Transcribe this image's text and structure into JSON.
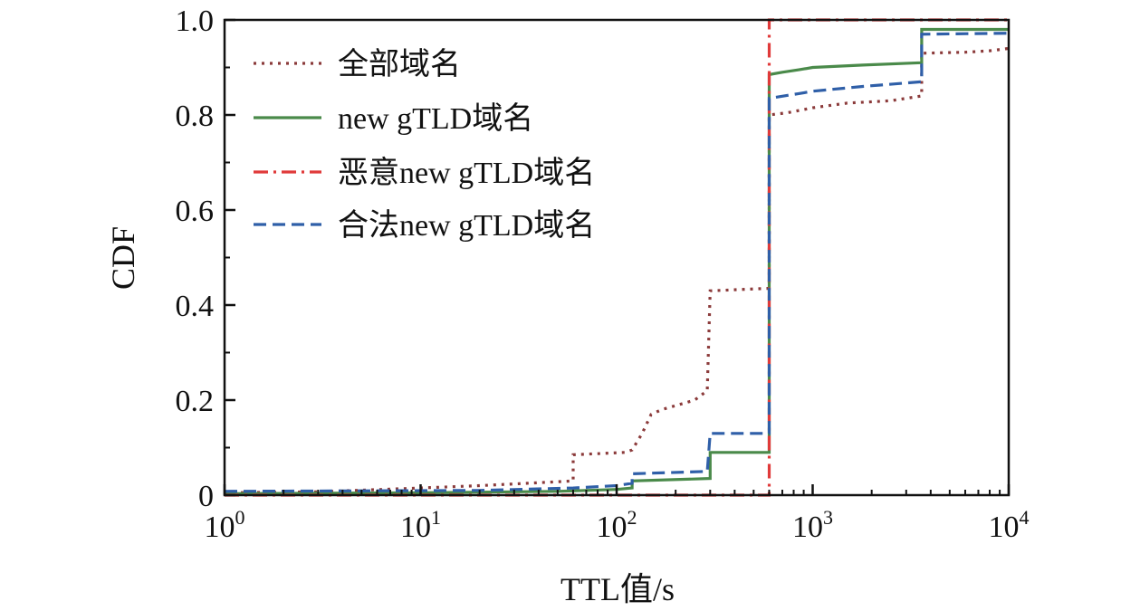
{
  "chart_data": {
    "type": "line",
    "xscale": "log",
    "xlim": [
      1,
      10000
    ],
    "ylim": [
      0,
      1.0
    ],
    "xlabel": "TTL值/s",
    "ylabel": "CDF",
    "xticks": [
      {
        "value": 1,
        "base": "10",
        "exp": "0"
      },
      {
        "value": 10,
        "base": "10",
        "exp": "1"
      },
      {
        "value": 100,
        "base": "10",
        "exp": "2"
      },
      {
        "value": 1000,
        "base": "10",
        "exp": "3"
      },
      {
        "value": 10000,
        "base": "10",
        "exp": "4"
      }
    ],
    "yticks": [
      {
        "value": 0,
        "label": "0"
      },
      {
        "value": 0.2,
        "label": "0.2"
      },
      {
        "value": 0.4,
        "label": "0.4"
      },
      {
        "value": 0.6,
        "label": "0.6"
      },
      {
        "value": 0.8,
        "label": "0.8"
      },
      {
        "value": 1.0,
        "label": "1.0"
      }
    ],
    "legend_position": "top-left",
    "series": [
      {
        "name": "全部域名",
        "color": "#8b3a3a",
        "dash": "dotted",
        "x": [
          1,
          3,
          10,
          20,
          35,
          60,
          60,
          110,
          120,
          135,
          150,
          170,
          250,
          290,
          300,
          580,
          600,
          600,
          750,
          1000,
          1500,
          2500,
          3600,
          3600,
          6000,
          8000,
          10000
        ],
        "y": [
          0.005,
          0.007,
          0.015,
          0.02,
          0.025,
          0.03,
          0.085,
          0.09,
          0.095,
          0.13,
          0.17,
          0.18,
          0.2,
          0.22,
          0.43,
          0.435,
          0.435,
          0.8,
          0.805,
          0.815,
          0.825,
          0.83,
          0.84,
          0.93,
          0.932,
          0.935,
          0.94
        ]
      },
      {
        "name": "new gTLD域名",
        "color": "#4a8a4a",
        "dash": "solid",
        "x": [
          1,
          10,
          50,
          100,
          120,
          120,
          300,
          300,
          600,
          600,
          700,
          850,
          1000,
          1800,
          3600,
          3600,
          10000
        ],
        "y": [
          0.003,
          0.005,
          0.008,
          0.012,
          0.015,
          0.03,
          0.035,
          0.09,
          0.09,
          0.885,
          0.89,
          0.895,
          0.9,
          0.905,
          0.91,
          0.98,
          0.98
        ]
      },
      {
        "name": "恶意new gTLD域名",
        "color": "#e03a3a",
        "dash": "dashdot",
        "x": [
          1,
          600,
          600,
          3600,
          10000
        ],
        "y": [
          0.0,
          0.0,
          1.0,
          1.0,
          1.0
        ]
      },
      {
        "name": "合法new gTLD域名",
        "color": "#2f5fa8",
        "dash": "dashed",
        "x": [
          1,
          20,
          60,
          100,
          120,
          120,
          290,
          300,
          300,
          600,
          600,
          850,
          1000,
          1800,
          3600,
          3600,
          10000
        ],
        "y": [
          0.008,
          0.01,
          0.015,
          0.02,
          0.025,
          0.045,
          0.05,
          0.13,
          0.13,
          0.13,
          0.835,
          0.845,
          0.85,
          0.86,
          0.87,
          0.97,
          0.972
        ]
      }
    ]
  }
}
